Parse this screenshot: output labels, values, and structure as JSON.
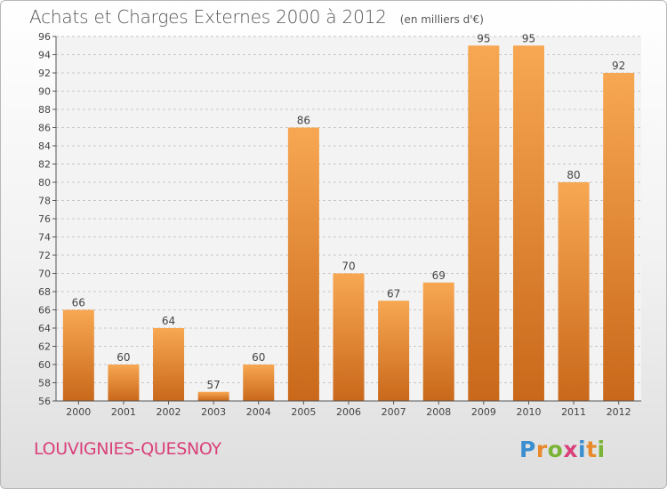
{
  "header": {
    "title": "Achats et Charges Externes 2000 à 2012",
    "unit": "(en milliers d'€)"
  },
  "footer": {
    "commune": "LOUVIGNIES-QUESNOY",
    "logo_letters": [
      "P",
      "r",
      "o",
      "x",
      "i",
      "t",
      "i"
    ],
    "logo_colors": [
      "#3b8fd1",
      "#e8892b",
      "#7ab336",
      "#d9407a",
      "#3b8fd1",
      "#e8892b",
      "#7ab336"
    ]
  },
  "chart_data": {
    "type": "bar",
    "title": "Achats et Charges Externes 2000 à 2012",
    "xlabel": "",
    "ylabel": "",
    "categories": [
      "2000",
      "2001",
      "2002",
      "2003",
      "2004",
      "2005",
      "2006",
      "2007",
      "2008",
      "2009",
      "2010",
      "2011",
      "2012"
    ],
    "values": [
      66,
      60,
      64,
      57,
      60,
      86,
      70,
      67,
      69,
      95,
      95,
      80,
      92
    ],
    "ylim": [
      56,
      96
    ],
    "yticks": [
      56,
      58,
      60,
      62,
      64,
      66,
      68,
      70,
      72,
      74,
      76,
      78,
      80,
      82,
      84,
      86,
      88,
      90,
      92,
      94,
      96
    ],
    "grid": true,
    "bar_color_light": "#f7a752",
    "bar_color_dark": "#c9681a"
  }
}
